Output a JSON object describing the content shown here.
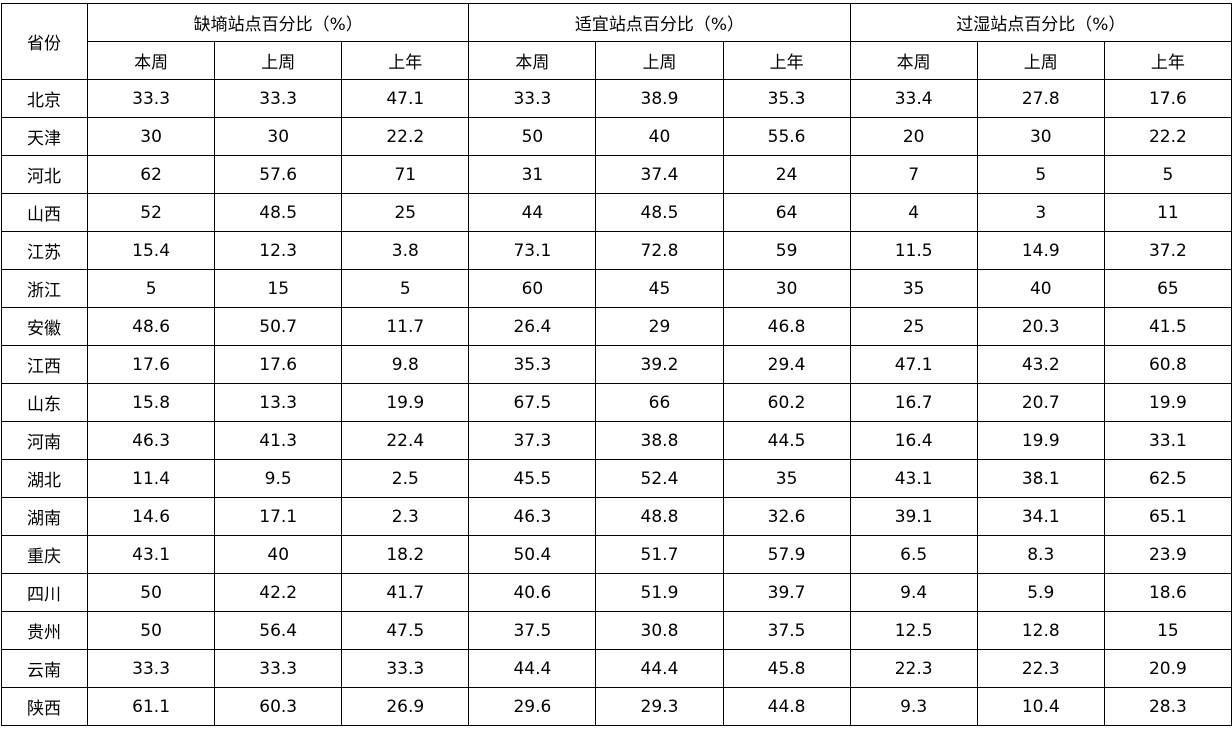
{
  "table": {
    "province_header": "省份",
    "groups": [
      "缺墒站点百分比（%）",
      "适宜站点百分比（%）",
      "过湿站点百分比（%）"
    ],
    "subheaders": [
      "本周",
      "上周",
      "上年"
    ],
    "rows": [
      {
        "province": "北京",
        "values": [
          "33.3",
          "33.3",
          "47.1",
          "33.3",
          "38.9",
          "35.3",
          "33.4",
          "27.8",
          "17.6"
        ]
      },
      {
        "province": "天津",
        "values": [
          "30",
          "30",
          "22.2",
          "50",
          "40",
          "55.6",
          "20",
          "30",
          "22.2"
        ]
      },
      {
        "province": "河北",
        "values": [
          "62",
          "57.6",
          "71",
          "31",
          "37.4",
          "24",
          "7",
          "5",
          "5"
        ]
      },
      {
        "province": "山西",
        "values": [
          "52",
          "48.5",
          "25",
          "44",
          "48.5",
          "64",
          "4",
          "3",
          "11"
        ]
      },
      {
        "province": "江苏",
        "values": [
          "15.4",
          "12.3",
          "3.8",
          "73.1",
          "72.8",
          "59",
          "11.5",
          "14.9",
          "37.2"
        ]
      },
      {
        "province": "浙江",
        "values": [
          "5",
          "15",
          "5",
          "60",
          "45",
          "30",
          "35",
          "40",
          "65"
        ]
      },
      {
        "province": "安徽",
        "values": [
          "48.6",
          "50.7",
          "11.7",
          "26.4",
          "29",
          "46.8",
          "25",
          "20.3",
          "41.5"
        ]
      },
      {
        "province": "江西",
        "values": [
          "17.6",
          "17.6",
          "9.8",
          "35.3",
          "39.2",
          "29.4",
          "47.1",
          "43.2",
          "60.8"
        ]
      },
      {
        "province": "山东",
        "values": [
          "15.8",
          "13.3",
          "19.9",
          "67.5",
          "66",
          "60.2",
          "16.7",
          "20.7",
          "19.9"
        ]
      },
      {
        "province": "河南",
        "values": [
          "46.3",
          "41.3",
          "22.4",
          "37.3",
          "38.8",
          "44.5",
          "16.4",
          "19.9",
          "33.1"
        ]
      },
      {
        "province": "湖北",
        "values": [
          "11.4",
          "9.5",
          "2.5",
          "45.5",
          "52.4",
          "35",
          "43.1",
          "38.1",
          "62.5"
        ]
      },
      {
        "province": "湖南",
        "values": [
          "14.6",
          "17.1",
          "2.3",
          "46.3",
          "48.8",
          "32.6",
          "39.1",
          "34.1",
          "65.1"
        ]
      },
      {
        "province": "重庆",
        "values": [
          "43.1",
          "40",
          "18.2",
          "50.4",
          "51.7",
          "57.9",
          "6.5",
          "8.3",
          "23.9"
        ]
      },
      {
        "province": "四川",
        "values": [
          "50",
          "42.2",
          "41.7",
          "40.6",
          "51.9",
          "39.7",
          "9.4",
          "5.9",
          "18.6"
        ]
      },
      {
        "province": "贵州",
        "values": [
          "50",
          "56.4",
          "47.5",
          "37.5",
          "30.8",
          "37.5",
          "12.5",
          "12.8",
          "15"
        ]
      },
      {
        "province": "云南",
        "values": [
          "33.3",
          "33.3",
          "33.3",
          "44.4",
          "44.4",
          "45.8",
          "22.3",
          "22.3",
          "20.9"
        ]
      },
      {
        "province": "陕西",
        "values": [
          "61.1",
          "60.3",
          "26.9",
          "29.6",
          "29.3",
          "44.8",
          "9.3",
          "10.4",
          "28.3"
        ]
      }
    ]
  }
}
